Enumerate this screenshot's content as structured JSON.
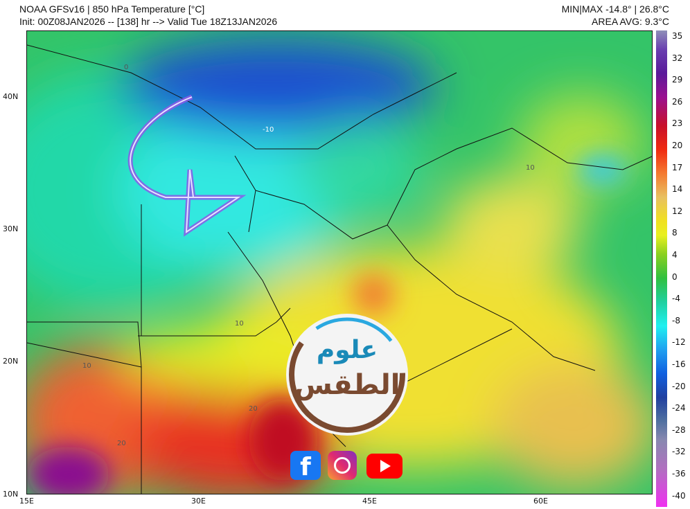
{
  "header": {
    "title": "NOAA GFSv16 | 850 hPa Temperature [°C]",
    "init": "Init: 00Z08JAN2026 -- [138] hr --> Valid Tue 18Z13JAN2026",
    "minmax": "MIN|MAX -14.8° | 26.8°C",
    "avg": "AREA AVG: 9.3°C"
  },
  "colorbar": {
    "labels": [
      "35",
      "32",
      "29",
      "26",
      "23",
      "20",
      "17",
      "14",
      "12",
      "8",
      "4",
      "0",
      "-4",
      "-8",
      "-12",
      "-16",
      "-20",
      "-24",
      "-28",
      "-32",
      "-36",
      "-40"
    ]
  },
  "axes": {
    "lat": [
      "40N",
      "30N",
      "20N",
      "10N"
    ],
    "lon": [
      "15E",
      "30E",
      "45E",
      "60E"
    ]
  },
  "contours": [
    "0",
    "10",
    "20",
    "-10"
  ],
  "logo": {
    "line1": "علوم",
    "line2": "الطقس"
  },
  "social": [
    "facebook-icon",
    "instagram-icon",
    "youtube-icon"
  ],
  "colors": {
    "cold": "#1040c0",
    "mild": "#30c060",
    "warm": "#f0e020",
    "hot": "#e02010"
  }
}
